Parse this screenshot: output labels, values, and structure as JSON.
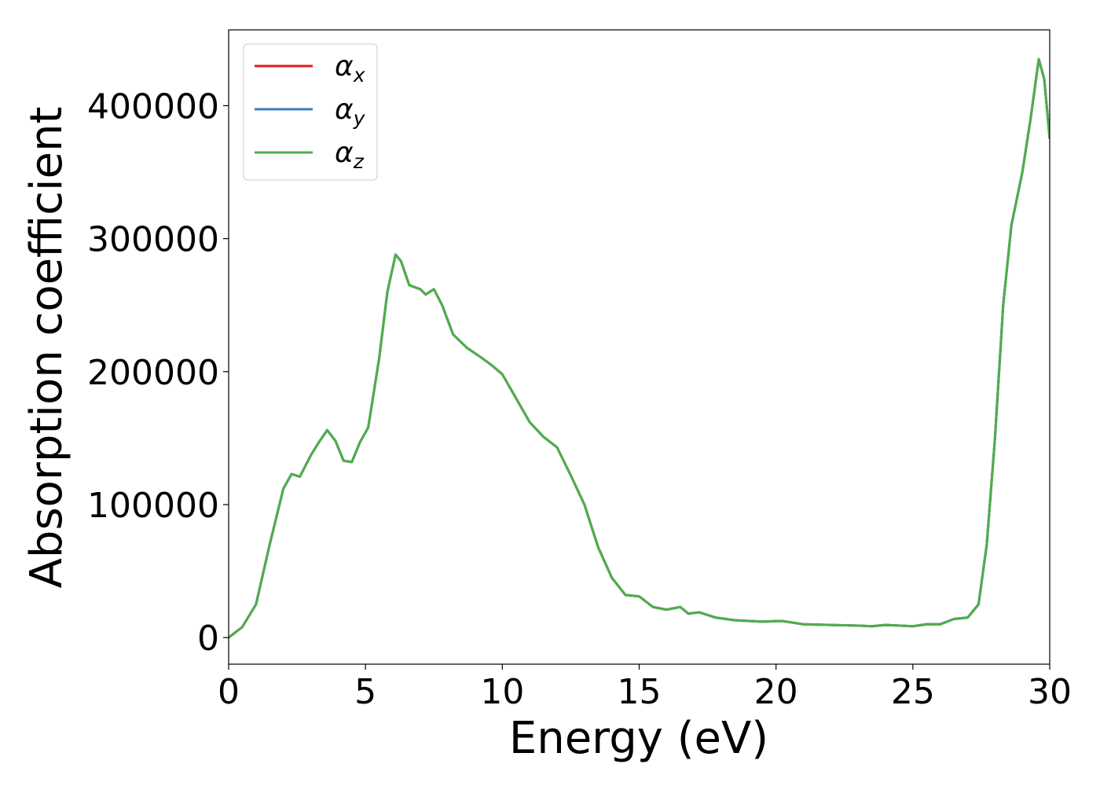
{
  "chart_data": {
    "type": "line",
    "xlabel": "Energy (eV)",
    "ylabel": "Absorption coefficient",
    "x": [
      0,
      0.5,
      1.0,
      1.5,
      2.0,
      2.3,
      2.6,
      3.0,
      3.3,
      3.6,
      3.9,
      4.2,
      4.5,
      4.8,
      5.1,
      5.5,
      5.8,
      6.1,
      6.3,
      6.6,
      7.0,
      7.2,
      7.5,
      7.8,
      8.2,
      8.7,
      9.2,
      9.6,
      10.0,
      10.5,
      11.0,
      11.5,
      12.0,
      12.5,
      13.0,
      13.5,
      14.0,
      14.5,
      15.0,
      15.5,
      16.0,
      16.5,
      16.8,
      17.2,
      17.8,
      18.5,
      19.5,
      20.2,
      21.0,
      22.0,
      23.0,
      23.5,
      24.0,
      25.0,
      25.5,
      26.0,
      26.5,
      27.0,
      27.4,
      27.7,
      28.0,
      28.3,
      28.6,
      29.0,
      29.3,
      29.6,
      29.8,
      30.0
    ],
    "series": [
      {
        "name": "αx",
        "color": "#e41a1c",
        "values": [
          0,
          8000,
          25000,
          70000,
          112000,
          123000,
          121000,
          137000,
          147000,
          156000,
          148000,
          133000,
          132000,
          147000,
          158000,
          210000,
          260000,
          288000,
          283000,
          265000,
          262000,
          258000,
          262000,
          250000,
          228000,
          218000,
          211000,
          205000,
          198000,
          180000,
          162000,
          151000,
          143000,
          122000,
          100000,
          68000,
          45000,
          32000,
          31000,
          23000,
          21000,
          23000,
          18000,
          19000,
          15000,
          13000,
          12000,
          12500,
          10000,
          9500,
          9000,
          8500,
          9500,
          8500,
          10000,
          10000,
          14000,
          15000,
          25000,
          70000,
          150000,
          250000,
          310000,
          350000,
          390000,
          435000,
          420000,
          375000
        ]
      },
      {
        "name": "αy",
        "color": "#377eb8",
        "values": [
          0,
          8000,
          25000,
          70000,
          112000,
          123000,
          121000,
          137000,
          147000,
          156000,
          148000,
          133000,
          132000,
          147000,
          158000,
          210000,
          260000,
          288000,
          283000,
          265000,
          262000,
          258000,
          262000,
          250000,
          228000,
          218000,
          211000,
          205000,
          198000,
          180000,
          162000,
          151000,
          143000,
          122000,
          100000,
          68000,
          45000,
          32000,
          31000,
          23000,
          21000,
          23000,
          18000,
          19000,
          15000,
          13000,
          12000,
          12500,
          10000,
          9500,
          9000,
          8500,
          9500,
          8500,
          10000,
          10000,
          14000,
          15000,
          25000,
          70000,
          150000,
          250000,
          310000,
          350000,
          390000,
          435000,
          420000,
          375000
        ]
      },
      {
        "name": "αz",
        "color": "#4daf4a",
        "values": [
          0,
          8000,
          25000,
          70000,
          112000,
          123000,
          121000,
          137000,
          147000,
          156000,
          148000,
          133000,
          132000,
          147000,
          158000,
          210000,
          260000,
          288000,
          283000,
          265000,
          262000,
          258000,
          262000,
          250000,
          228000,
          218000,
          211000,
          205000,
          198000,
          180000,
          162000,
          151000,
          143000,
          122000,
          100000,
          68000,
          45000,
          32000,
          31000,
          23000,
          21000,
          23000,
          18000,
          19000,
          15000,
          13000,
          12000,
          12500,
          10000,
          9500,
          9000,
          8500,
          9500,
          8500,
          10000,
          10000,
          14000,
          15000,
          25000,
          70000,
          150000,
          250000,
          310000,
          350000,
          390000,
          435000,
          420000,
          375000
        ]
      }
    ],
    "xlim": [
      0,
      30
    ],
    "xticks": [
      0,
      5,
      10,
      15,
      20,
      25,
      30
    ],
    "ylim": [
      -20000,
      457000
    ],
    "yticks": [
      0,
      100000,
      200000,
      300000,
      400000
    ],
    "grid": false,
    "legend": "upper left"
  }
}
